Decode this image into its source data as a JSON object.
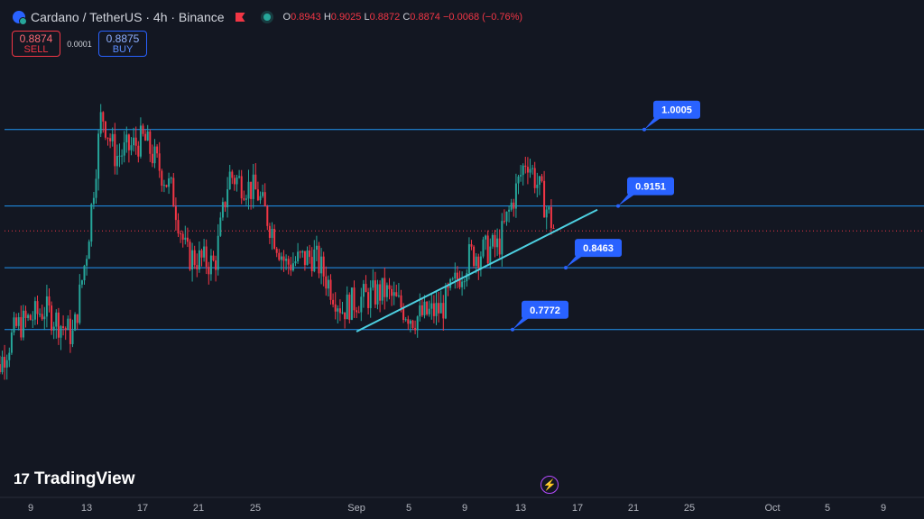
{
  "header": {
    "symbol": "Cardano / TetherUS · 4h · Binance",
    "ohlc": {
      "o_label": "O",
      "o": "0.8943",
      "h_label": "H",
      "h": "0.9025",
      "l_label": "L",
      "l": "0.8872",
      "c_label": "C",
      "c": "0.8874",
      "change": "−0.0068 (−0.76%)"
    }
  },
  "trade": {
    "sell_price": "0.8874",
    "sell_label": "SELL",
    "spread": "0.0001",
    "buy_price": "0.8875",
    "buy_label": "BUY"
  },
  "branding": {
    "logo_mark": "17",
    "name": "TradingView"
  },
  "colors": {
    "up": "#26a69a",
    "down": "#f23645",
    "level": "#2196f3",
    "trend": "#4dd0e1",
    "label_bg": "#2962ff",
    "background": "#131722"
  },
  "chart_data": {
    "type": "candlestick",
    "symbol": "ADAUSDT",
    "interval": "4h",
    "x_ticks": [
      "9",
      "13",
      "17",
      "21",
      "25",
      "Sep",
      "5",
      "9",
      "13",
      "17",
      "21",
      "25",
      "Oct",
      "5",
      "9"
    ],
    "horizontal_levels": [
      1.0005,
      0.9151,
      0.8463,
      0.7772
    ],
    "level_labels": [
      "1.0005",
      "0.9151",
      "0.8463",
      "0.7772"
    ],
    "trendline": {
      "from": {
        "date": "Sep 1",
        "price": 0.775
      },
      "to": {
        "date": "Sep 18",
        "price": 0.911
      }
    },
    "current_price": 0.8874,
    "y_range": [
      0.59,
      1.145
    ],
    "series_outline": [
      {
        "date": "Aug 6",
        "price": 0.71
      },
      {
        "date": "Aug 8",
        "price": 0.78
      },
      {
        "date": "Aug 10",
        "price": 0.8
      },
      {
        "date": "Aug 12",
        "price": 0.77
      },
      {
        "date": "Aug 13",
        "price": 0.87
      },
      {
        "date": "Aug 14",
        "price": 1.02
      },
      {
        "date": "Aug 15",
        "price": 0.97
      },
      {
        "date": "Aug 17",
        "price": 0.99
      },
      {
        "date": "Aug 19",
        "price": 0.93
      },
      {
        "date": "Aug 20",
        "price": 0.86
      },
      {
        "date": "Aug 22",
        "price": 0.85
      },
      {
        "date": "Aug 23",
        "price": 0.95
      },
      {
        "date": "Aug 25",
        "price": 0.93
      },
      {
        "date": "Aug 27",
        "price": 0.85
      },
      {
        "date": "Aug 29",
        "price": 0.86
      },
      {
        "date": "Aug 31",
        "price": 0.8
      },
      {
        "date": "Sep 1",
        "price": 0.81
      },
      {
        "date": "Sep 3",
        "price": 0.82
      },
      {
        "date": "Sep 5",
        "price": 0.79
      },
      {
        "date": "Sep 7",
        "price": 0.8
      },
      {
        "date": "Sep 9",
        "price": 0.86
      },
      {
        "date": "Sep 11",
        "price": 0.87
      },
      {
        "date": "Sep 13",
        "price": 0.97
      },
      {
        "date": "Sep 14",
        "price": 0.93
      },
      {
        "date": "Sep 15",
        "price": 0.887
      }
    ]
  }
}
